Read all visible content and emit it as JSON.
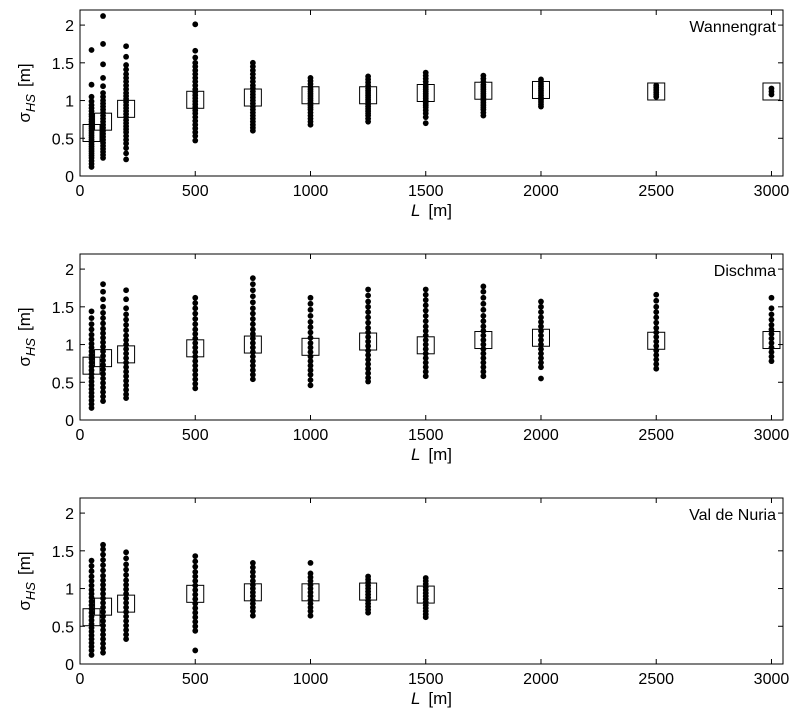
{
  "chart_data": [
    {
      "type": "scatter",
      "title": "Wannengrat",
      "xlabel": "L",
      "xunit": "[m]",
      "ylabel": "σ",
      "ysub": "HS",
      "yunit": "[m]",
      "xlim": [
        0,
        3050
      ],
      "ylim": [
        0,
        2.2
      ],
      "xticks": [
        0,
        500,
        1000,
        1500,
        2000,
        2500,
        3000
      ],
      "yticks": [
        0,
        0.5,
        1,
        1.5,
        2
      ],
      "points": [
        {
          "x": 50,
          "y": [
            1.67,
            1.21,
            1.05,
            0.99,
            0.94,
            0.9,
            0.86,
            0.82,
            0.79,
            0.75,
            0.72,
            0.69,
            0.66,
            0.63,
            0.6,
            0.57,
            0.54,
            0.51,
            0.48,
            0.45,
            0.42,
            0.39,
            0.36,
            0.33,
            0.3,
            0.27,
            0.24,
            0.2,
            0.16,
            0.12
          ]
        },
        {
          "x": 100,
          "y": [
            2.12,
            1.75,
            1.48,
            1.3,
            1.19,
            1.1,
            1.05,
            1.0,
            0.96,
            0.92,
            0.88,
            0.84,
            0.8,
            0.76,
            0.72,
            0.68,
            0.64,
            0.6,
            0.56,
            0.52,
            0.48,
            0.44,
            0.4,
            0.36,
            0.32,
            0.28,
            0.24
          ]
        },
        {
          "x": 200,
          "y": [
            1.72,
            1.58,
            1.47,
            1.41,
            1.35,
            1.3,
            1.25,
            1.2,
            1.15,
            1.1,
            1.06,
            1.02,
            0.98,
            0.94,
            0.9,
            0.86,
            0.82,
            0.78,
            0.74,
            0.7,
            0.66,
            0.62,
            0.58,
            0.53,
            0.48,
            0.43,
            0.37,
            0.3,
            0.22
          ]
        },
        {
          "x": 500,
          "y": [
            2.01,
            1.66,
            1.57,
            1.5,
            1.45,
            1.4,
            1.35,
            1.3,
            1.25,
            1.2,
            1.15,
            1.11,
            1.07,
            1.03,
            0.99,
            0.95,
            0.91,
            0.87,
            0.83,
            0.78,
            0.73,
            0.68,
            0.63,
            0.58,
            0.53,
            0.47
          ]
        },
        {
          "x": 750,
          "y": [
            1.5,
            1.45,
            1.4,
            1.35,
            1.3,
            1.25,
            1.2,
            1.16,
            1.12,
            1.08,
            1.04,
            1.0,
            0.96,
            0.92,
            0.88,
            0.84,
            0.8,
            0.76,
            0.72,
            0.68,
            0.64,
            0.6
          ]
        },
        {
          "x": 1000,
          "y": [
            1.3,
            1.26,
            1.22,
            1.18,
            1.15,
            1.12,
            1.09,
            1.06,
            1.03,
            1.0,
            0.97,
            0.94,
            0.91,
            0.88,
            0.84,
            0.8,
            0.76,
            0.72,
            0.68
          ]
        },
        {
          "x": 1250,
          "y": [
            1.32,
            1.28,
            1.24,
            1.2,
            1.16,
            1.13,
            1.1,
            1.07,
            1.04,
            1.01,
            0.98,
            0.95,
            0.92,
            0.89,
            0.86,
            0.83,
            0.8,
            0.76,
            0.72
          ]
        },
        {
          "x": 1500,
          "y": [
            1.37,
            1.33,
            1.29,
            1.25,
            1.21,
            1.18,
            1.15,
            1.12,
            1.09,
            1.06,
            1.03,
            1.0,
            0.97,
            0.94,
            0.91,
            0.87,
            0.83,
            0.78,
            0.7
          ]
        },
        {
          "x": 1750,
          "y": [
            1.33,
            1.29,
            1.25,
            1.21,
            1.18,
            1.15,
            1.12,
            1.09,
            1.06,
            1.03,
            1.0,
            0.97,
            0.94,
            0.91,
            0.88,
            0.84,
            0.8
          ]
        },
        {
          "x": 2000,
          "y": [
            1.28,
            1.25,
            1.22,
            1.19,
            1.16,
            1.13,
            1.1,
            1.07,
            1.04,
            1.01,
            0.98,
            0.95,
            0.92
          ]
        },
        {
          "x": 2500,
          "y": [
            1.2,
            1.17,
            1.14,
            1.11,
            1.08,
            1.05
          ]
        },
        {
          "x": 3000,
          "y": [
            1.16,
            1.12,
            1.08
          ]
        }
      ],
      "means": [
        {
          "x": 50,
          "y": 0.57
        },
        {
          "x": 100,
          "y": 0.72
        },
        {
          "x": 200,
          "y": 0.89
        },
        {
          "x": 500,
          "y": 1.01
        },
        {
          "x": 750,
          "y": 1.04
        },
        {
          "x": 1000,
          "y": 1.07
        },
        {
          "x": 1250,
          "y": 1.07
        },
        {
          "x": 1500,
          "y": 1.1
        },
        {
          "x": 1750,
          "y": 1.13
        },
        {
          "x": 2000,
          "y": 1.14
        },
        {
          "x": 2500,
          "y": 1.12
        },
        {
          "x": 3000,
          "y": 1.12
        }
      ]
    },
    {
      "type": "scatter",
      "title": "Dischma",
      "xlabel": "L",
      "xunit": "[m]",
      "ylabel": "σ",
      "ysub": "HS",
      "yunit": "[m]",
      "xlim": [
        0,
        3050
      ],
      "ylim": [
        0,
        2.2
      ],
      "xticks": [
        0,
        500,
        1000,
        1500,
        2000,
        2500,
        3000
      ],
      "yticks": [
        0,
        0.5,
        1,
        1.5,
        2
      ],
      "points": [
        {
          "x": 50,
          "y": [
            1.44,
            1.35,
            1.27,
            1.2,
            1.13,
            1.07,
            1.01,
            0.96,
            0.91,
            0.86,
            0.81,
            0.76,
            0.71,
            0.66,
            0.61,
            0.56,
            0.51,
            0.46,
            0.41,
            0.36,
            0.31,
            0.26,
            0.21,
            0.16
          ]
        },
        {
          "x": 100,
          "y": [
            1.8,
            1.7,
            1.6,
            1.5,
            1.42,
            1.35,
            1.28,
            1.21,
            1.15,
            1.09,
            1.03,
            0.97,
            0.91,
            0.85,
            0.79,
            0.73,
            0.67,
            0.61,
            0.55,
            0.49,
            0.43,
            0.37,
            0.31,
            0.25
          ]
        },
        {
          "x": 200,
          "y": [
            1.72,
            1.6,
            1.48,
            1.4,
            1.33,
            1.26,
            1.19,
            1.12,
            1.06,
            1.0,
            0.94,
            0.88,
            0.82,
            0.76,
            0.7,
            0.64,
            0.58,
            0.52,
            0.46,
            0.4,
            0.34,
            0.29
          ]
        },
        {
          "x": 500,
          "y": [
            1.62,
            1.55,
            1.48,
            1.41,
            1.34,
            1.27,
            1.2,
            1.14,
            1.08,
            1.02,
            0.96,
            0.9,
            0.84,
            0.78,
            0.72,
            0.66,
            0.6,
            0.54,
            0.48,
            0.42
          ]
        },
        {
          "x": 750,
          "y": [
            1.88,
            1.8,
            1.72,
            1.64,
            1.56,
            1.48,
            1.41,
            1.34,
            1.27,
            1.2,
            1.14,
            1.08,
            1.02,
            0.96,
            0.9,
            0.84,
            0.78,
            0.72,
            0.66,
            0.6,
            0.54
          ]
        },
        {
          "x": 1000,
          "y": [
            1.62,
            1.54,
            1.46,
            1.38,
            1.3,
            1.23,
            1.16,
            1.09,
            1.02,
            0.96,
            0.9,
            0.84,
            0.78,
            0.72,
            0.66,
            0.6,
            0.53,
            0.46
          ]
        },
        {
          "x": 1250,
          "y": [
            1.73,
            1.65,
            1.57,
            1.5,
            1.43,
            1.36,
            1.29,
            1.22,
            1.16,
            1.1,
            1.04,
            0.98,
            0.92,
            0.86,
            0.8,
            0.74,
            0.68,
            0.62,
            0.56,
            0.51
          ]
        },
        {
          "x": 1500,
          "y": [
            1.73,
            1.66,
            1.59,
            1.52,
            1.45,
            1.38,
            1.31,
            1.24,
            1.18,
            1.12,
            1.06,
            1.0,
            0.94,
            0.88,
            0.82,
            0.76,
            0.7,
            0.64,
            0.58
          ]
        },
        {
          "x": 1750,
          "y": [
            1.77,
            1.7,
            1.62,
            1.54,
            1.46,
            1.38,
            1.31,
            1.24,
            1.18,
            1.12,
            1.06,
            1.0,
            0.94,
            0.88,
            0.82,
            0.76,
            0.7,
            0.64,
            0.58
          ]
        },
        {
          "x": 2000,
          "y": [
            1.57,
            1.5,
            1.43,
            1.36,
            1.3,
            1.24,
            1.18,
            1.12,
            1.06,
            1.0,
            0.94,
            0.88,
            0.82,
            0.76,
            0.7,
            0.55
          ]
        },
        {
          "x": 2500,
          "y": [
            1.66,
            1.58,
            1.5,
            1.43,
            1.36,
            1.29,
            1.22,
            1.16,
            1.1,
            1.04,
            0.98,
            0.92,
            0.86,
            0.8,
            0.74,
            0.68
          ]
        },
        {
          "x": 3000,
          "y": [
            1.62,
            1.48,
            1.4,
            1.33,
            1.26,
            1.2,
            1.14,
            1.08,
            1.02,
            0.96,
            0.9,
            0.84,
            0.78
          ]
        }
      ],
      "means": [
        {
          "x": 50,
          "y": 0.72
        },
        {
          "x": 100,
          "y": 0.82
        },
        {
          "x": 200,
          "y": 0.87
        },
        {
          "x": 500,
          "y": 0.95
        },
        {
          "x": 750,
          "y": 1.0
        },
        {
          "x": 1000,
          "y": 0.97
        },
        {
          "x": 1250,
          "y": 1.04
        },
        {
          "x": 1500,
          "y": 0.99
        },
        {
          "x": 1750,
          "y": 1.06
        },
        {
          "x": 2000,
          "y": 1.09
        },
        {
          "x": 2500,
          "y": 1.05
        },
        {
          "x": 3000,
          "y": 1.06
        }
      ]
    },
    {
      "type": "scatter",
      "title": "Val de Nuria",
      "xlabel": "L",
      "xunit": "[m]",
      "ylabel": "σ",
      "ysub": "HS",
      "yunit": "[m]",
      "xlim": [
        0,
        3050
      ],
      "ylim": [
        0,
        2.2
      ],
      "xticks": [
        0,
        500,
        1000,
        1500,
        2000,
        2500,
        3000
      ],
      "yticks": [
        0,
        0.5,
        1,
        1.5,
        2
      ],
      "points": [
        {
          "x": 50,
          "y": [
            1.37,
            1.3,
            1.23,
            1.16,
            1.1,
            1.04,
            0.98,
            0.93,
            0.88,
            0.83,
            0.78,
            0.73,
            0.68,
            0.63,
            0.58,
            0.53,
            0.48,
            0.43,
            0.38,
            0.33,
            0.28,
            0.23,
            0.18,
            0.12
          ]
        },
        {
          "x": 100,
          "y": [
            1.58,
            1.52,
            1.45,
            1.38,
            1.31,
            1.24,
            1.17,
            1.11,
            1.05,
            0.99,
            0.93,
            0.87,
            0.81,
            0.75,
            0.69,
            0.63,
            0.57,
            0.51,
            0.45,
            0.39,
            0.33,
            0.27,
            0.21,
            0.15
          ]
        },
        {
          "x": 200,
          "y": [
            1.48,
            1.4,
            1.32,
            1.25,
            1.18,
            1.11,
            1.05,
            0.99,
            0.93,
            0.87,
            0.81,
            0.75,
            0.69,
            0.63,
            0.57,
            0.51,
            0.45,
            0.39,
            0.33
          ]
        },
        {
          "x": 500,
          "y": [
            1.43,
            1.36,
            1.29,
            1.22,
            1.16,
            1.1,
            1.04,
            0.98,
            0.92,
            0.86,
            0.8,
            0.74,
            0.68,
            0.62,
            0.56,
            0.5,
            0.44,
            0.18
          ]
        },
        {
          "x": 750,
          "y": [
            1.34,
            1.28,
            1.22,
            1.16,
            1.1,
            1.05,
            1.0,
            0.95,
            0.9,
            0.85,
            0.8,
            0.75,
            0.7,
            0.64
          ]
        },
        {
          "x": 1000,
          "y": [
            1.34,
            1.2,
            1.15,
            1.1,
            1.05,
            1.0,
            0.95,
            0.9,
            0.85,
            0.8,
            0.75,
            0.7,
            0.64
          ]
        },
        {
          "x": 1250,
          "y": [
            1.16,
            1.12,
            1.08,
            1.04,
            1.0,
            0.96,
            0.92,
            0.88,
            0.84,
            0.8,
            0.76,
            0.72,
            0.68
          ]
        },
        {
          "x": 1500,
          "y": [
            1.14,
            1.1,
            1.06,
            1.02,
            0.98,
            0.94,
            0.9,
            0.86,
            0.82,
            0.78,
            0.74,
            0.7,
            0.66,
            0.62
          ]
        }
      ],
      "means": [
        {
          "x": 50,
          "y": 0.62
        },
        {
          "x": 100,
          "y": 0.76
        },
        {
          "x": 200,
          "y": 0.8
        },
        {
          "x": 500,
          "y": 0.93
        },
        {
          "x": 750,
          "y": 0.95
        },
        {
          "x": 1000,
          "y": 0.95
        },
        {
          "x": 1250,
          "y": 0.96
        },
        {
          "x": 1500,
          "y": 0.92
        }
      ]
    }
  ]
}
